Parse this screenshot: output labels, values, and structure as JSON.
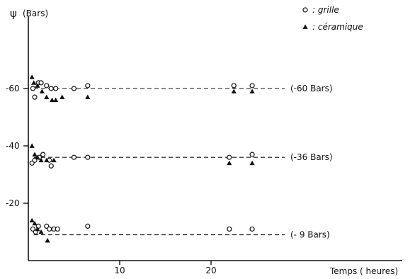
{
  "chart_data": {
    "type": "scatter",
    "ylabel_symbol": "ψ",
    "ylabel_unit": "(Bars)",
    "xlabel": "Temps ( heures)",
    "xlim": [
      0,
      40
    ],
    "ylim": [
      0,
      75
    ],
    "x_ticks": [
      10,
      20
    ],
    "y_ticks": [
      {
        "value": 60,
        "label": "-60"
      },
      {
        "value": 40,
        "label": "-40"
      },
      {
        "value": 20,
        "label": "-20"
      }
    ],
    "legend": {
      "position": "top-right",
      "entries": [
        {
          "marker": "circle-open",
          "label": ": grille"
        },
        {
          "marker": "triangle-up",
          "label": ": céramique"
        }
      ]
    },
    "reference_lines": [
      {
        "y": 60,
        "label": "(-60 Bars)"
      },
      {
        "y": 36,
        "label": "(-36 Bars)"
      },
      {
        "y": 9,
        "label": "(- 9 Bars)"
      }
    ],
    "series": [
      {
        "name": ": grille",
        "marker": "circle-open",
        "points": [
          [
            0.5,
            60
          ],
          [
            0.7,
            57
          ],
          [
            1.1,
            62
          ],
          [
            1.4,
            62
          ],
          [
            2.0,
            61
          ],
          [
            2.5,
            60
          ],
          [
            3.0,
            60
          ],
          [
            5.0,
            60
          ],
          [
            6.5,
            61
          ],
          [
            22.5,
            61
          ],
          [
            24.5,
            61
          ],
          [
            0.4,
            34
          ],
          [
            0.7,
            35
          ],
          [
            1.2,
            36
          ],
          [
            1.6,
            37
          ],
          [
            2.3,
            35
          ],
          [
            2.5,
            33
          ],
          [
            5.0,
            36
          ],
          [
            6.5,
            36
          ],
          [
            22.0,
            36
          ],
          [
            24.5,
            37
          ],
          [
            0.5,
            11
          ],
          [
            0.8,
            10
          ],
          [
            1.1,
            12
          ],
          [
            2.0,
            12
          ],
          [
            2.3,
            11
          ],
          [
            2.8,
            11
          ],
          [
            3.2,
            11
          ],
          [
            6.5,
            12
          ],
          [
            22.0,
            11
          ],
          [
            24.5,
            11
          ]
        ]
      },
      {
        "name": ": céramique",
        "marker": "triangle-up",
        "points": [
          [
            0.4,
            64
          ],
          [
            0.6,
            62
          ],
          [
            1.0,
            61
          ],
          [
            1.5,
            59
          ],
          [
            2.0,
            57
          ],
          [
            2.6,
            56
          ],
          [
            3.0,
            56
          ],
          [
            3.7,
            57
          ],
          [
            6.5,
            57
          ],
          [
            22.5,
            59
          ],
          [
            24.5,
            59
          ],
          [
            0.4,
            40
          ],
          [
            0.7,
            37
          ],
          [
            1.0,
            36
          ],
          [
            1.4,
            35
          ],
          [
            2.0,
            35
          ],
          [
            2.8,
            35
          ],
          [
            22.0,
            34
          ],
          [
            24.5,
            34
          ],
          [
            0.4,
            14
          ],
          [
            0.7,
            13
          ],
          [
            1.0,
            11
          ],
          [
            1.4,
            10
          ],
          [
            2.1,
            7
          ]
        ]
      }
    ]
  }
}
